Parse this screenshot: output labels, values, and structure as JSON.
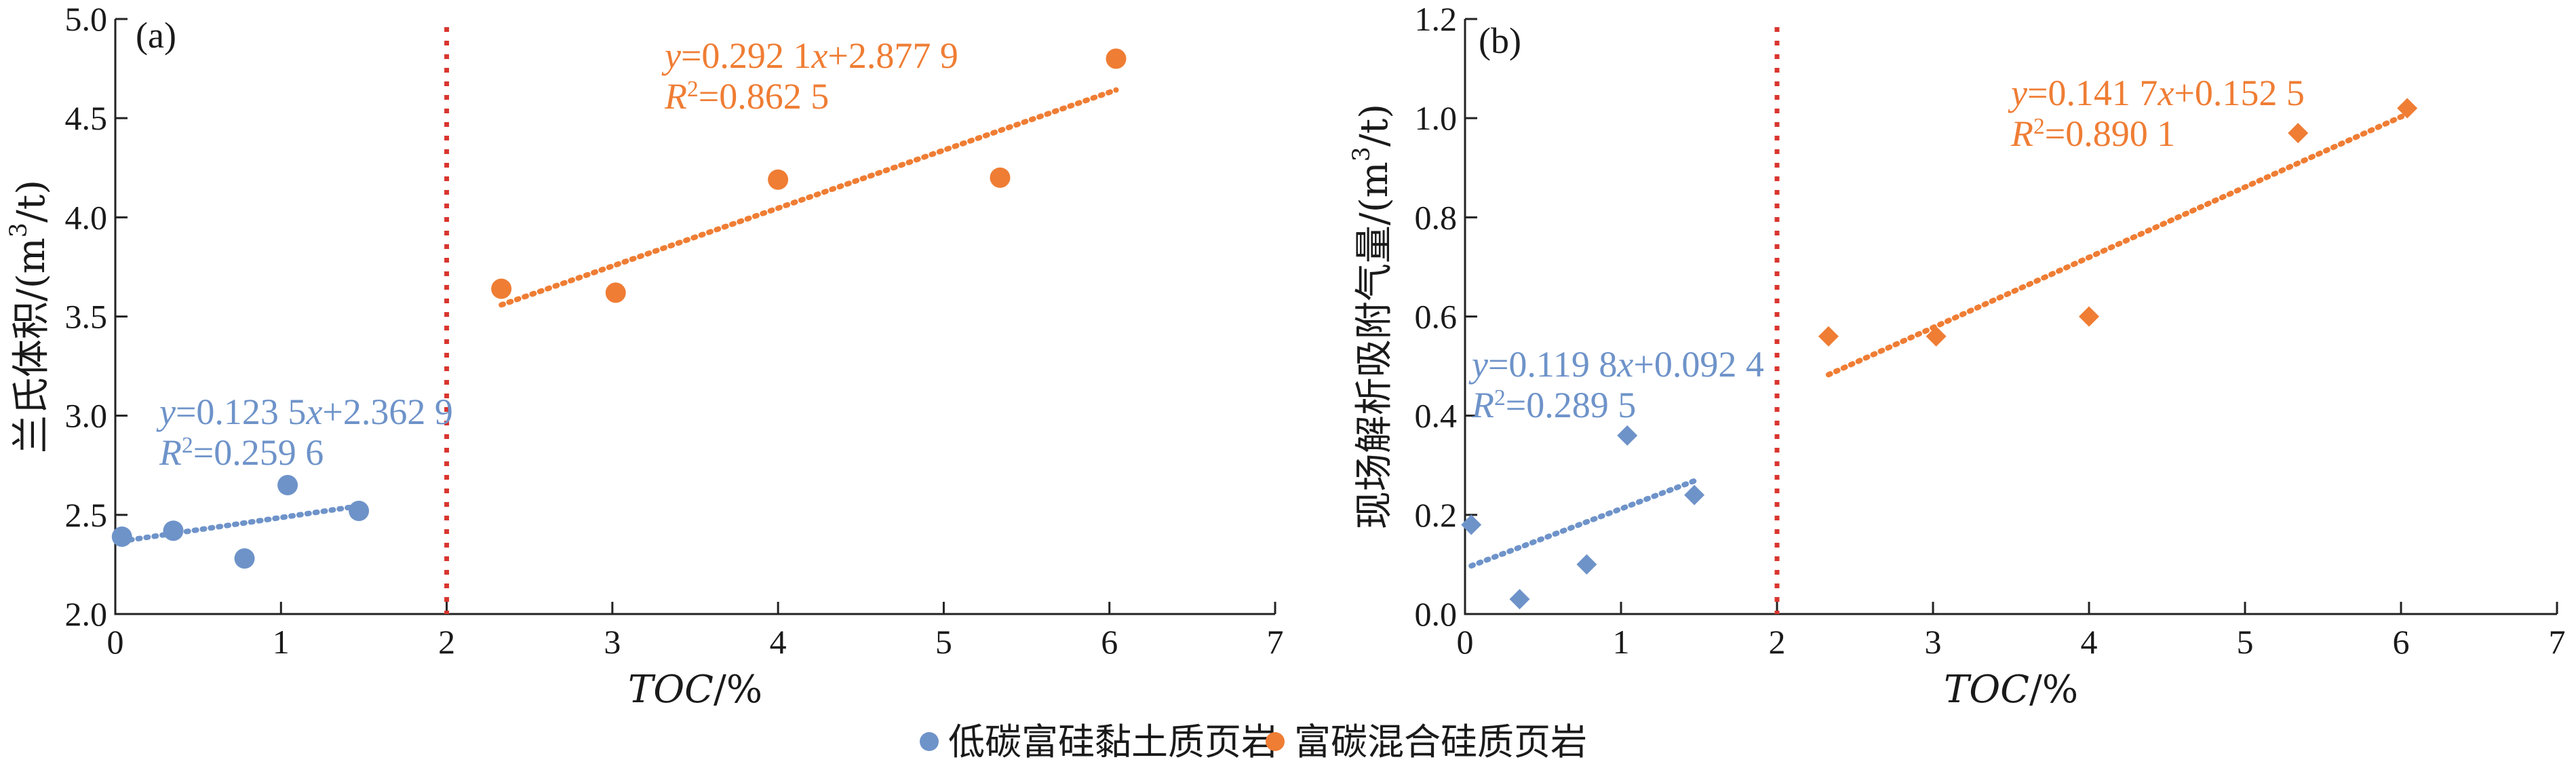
{
  "colors": {
    "low": "#6e93c9",
    "high": "#ef7d34",
    "divider": "#d9352e",
    "axis": "#222222"
  },
  "legend": {
    "items": [
      {
        "label": "低碳富硅黏土质页岩",
        "color": "#6e93c9"
      },
      {
        "label": "富碳混合硅质页岩",
        "color": "#ef7d34"
      }
    ]
  },
  "chart_data": [
    {
      "type": "scatter",
      "panel_label": "(a)",
      "xlabel": "TOC/%",
      "ylabel": "兰氏体积/(m³/t)",
      "xlim": [
        0,
        7
      ],
      "ylim": [
        2.0,
        5.0
      ],
      "xticks": [
        0,
        1,
        2,
        3,
        4,
        5,
        6,
        7
      ],
      "yticks": [
        2.0,
        2.5,
        3.0,
        3.5,
        4.0,
        4.5,
        5.0
      ],
      "ytick_decimals": 1,
      "marker": "circle",
      "divider_x": 2,
      "series": [
        {
          "name": "低碳富硅黏土质页岩",
          "color": "#6e93c9",
          "x": [
            0.04,
            0.35,
            0.78,
            1.04,
            1.47
          ],
          "y": [
            2.39,
            2.42,
            2.28,
            2.65,
            2.52
          ],
          "fit": {
            "slope": 0.1235,
            "intercept": 2.3629,
            "x_range": [
              0.04,
              1.47
            ],
            "eq": "y=0.123 5x+2.362 9",
            "r2": "R²=0.259 6"
          }
        },
        {
          "name": "富碳混合硅质页岩",
          "color": "#ef7d34",
          "x": [
            2.33,
            3.02,
            4.0,
            5.34,
            6.04
          ],
          "y": [
            3.64,
            3.62,
            4.19,
            4.2,
            4.8
          ],
          "fit": {
            "slope": 0.2921,
            "intercept": 2.8779,
            "x_range": [
              2.33,
              6.04
            ],
            "eq": "y=0.292 1x+2.877 9",
            "r2": "R²=0.862 5"
          }
        }
      ]
    },
    {
      "type": "scatter",
      "panel_label": "(b)",
      "xlabel": "TOC/%",
      "ylabel": "现场解析吸附气量/(m³/t)",
      "xlim": [
        0,
        7
      ],
      "ylim": [
        0.0,
        1.2
      ],
      "xticks": [
        0,
        1,
        2,
        3,
        4,
        5,
        6,
        7
      ],
      "yticks": [
        0.0,
        0.2,
        0.4,
        0.6,
        0.8,
        1.0,
        1.2
      ],
      "ytick_decimals": 1,
      "marker": "diamond",
      "divider_x": 2,
      "series": [
        {
          "name": "低碳富硅黏土质页岩",
          "color": "#6e93c9",
          "x": [
            0.04,
            0.35,
            0.78,
            1.04,
            1.47
          ],
          "y": [
            0.18,
            0.03,
            0.1,
            0.36,
            0.24
          ],
          "fit": {
            "slope": 0.1198,
            "intercept": 0.0924,
            "x_range": [
              0.04,
              1.47
            ],
            "eq": "y=0.119 8x+0.092 4",
            "r2": "R²=0.289 5"
          }
        },
        {
          "name": "富碳混合硅质页岩",
          "color": "#ef7d34",
          "x": [
            2.33,
            3.02,
            4.0,
            5.34,
            6.04
          ],
          "y": [
            0.56,
            0.56,
            0.6,
            0.97,
            1.02
          ],
          "fit": {
            "slope": 0.1417,
            "intercept": 0.1525,
            "x_range": [
              2.33,
              6.04
            ],
            "eq": "y=0.141 7x+0.152 5",
            "r2": "R²=0.890 1"
          }
        }
      ]
    }
  ]
}
